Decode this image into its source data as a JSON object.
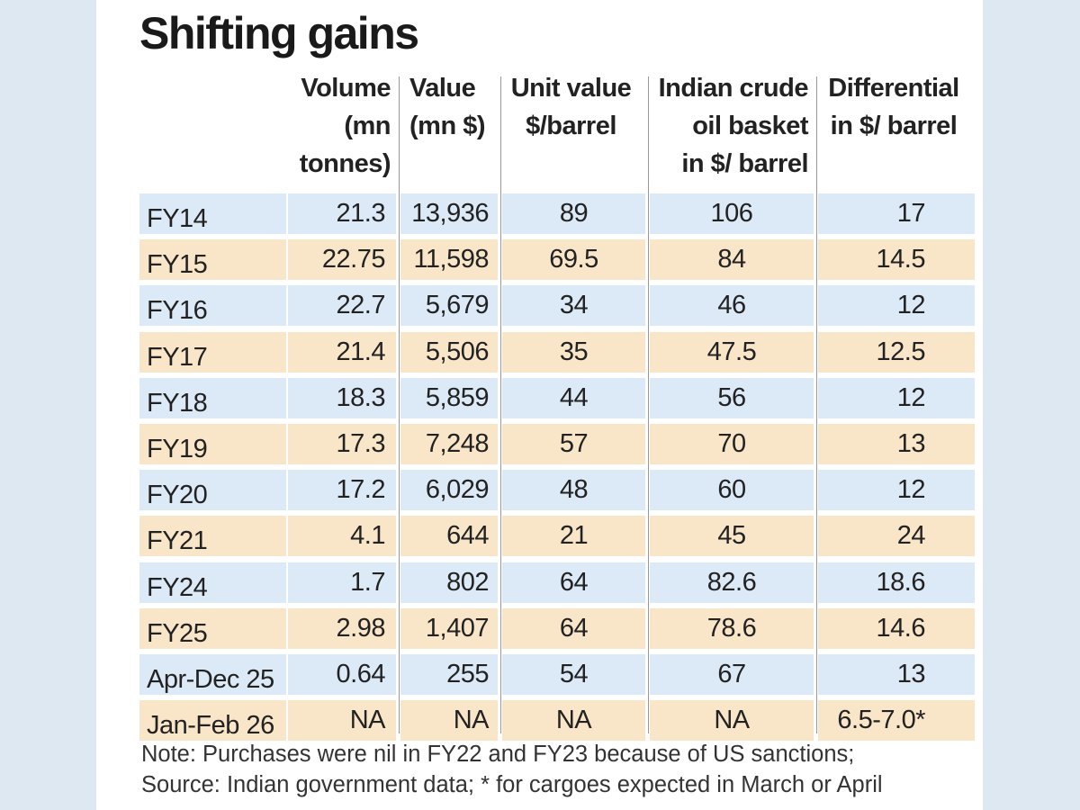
{
  "title": "Shifting gains",
  "table": {
    "headers": [
      {
        "lines": [
          ""
        ]
      },
      {
        "lines": [
          "Volume",
          "(mn",
          "tonnes)"
        ]
      },
      {
        "lines": [
          "Value",
          "(mn $)"
        ]
      },
      {
        "lines": [
          "Unit value",
          "$/barrel"
        ]
      },
      {
        "lines": [
          "Indian crude",
          "oil basket",
          "in $/ barrel"
        ]
      },
      {
        "lines": [
          "Differential",
          "in $/ barrel"
        ]
      }
    ],
    "rows": [
      [
        "FY14",
        "21.3",
        "13,936",
        "89",
        "106",
        "17"
      ],
      [
        "FY15",
        "22.75",
        "11,598",
        "69.5",
        "84",
        "14.5"
      ],
      [
        "FY16",
        "22.7",
        "5,679",
        "34",
        "46",
        "12"
      ],
      [
        "FY17",
        "21.4",
        "5,506",
        "35",
        "47.5",
        "12.5"
      ],
      [
        "FY18",
        "18.3",
        "5,859",
        "44",
        "56",
        "12"
      ],
      [
        "FY19",
        "17.3",
        "7,248",
        "57",
        "70",
        "13"
      ],
      [
        "FY20",
        "17.2",
        "6,029",
        "48",
        "60",
        "12"
      ],
      [
        "FY21",
        "4.1",
        "644",
        "21",
        "45",
        "24"
      ],
      [
        "FY24",
        "1.7",
        "802",
        "64",
        "82.6",
        "18.6"
      ],
      [
        "FY25",
        "2.98",
        "1,407",
        "64",
        "78.6",
        "14.6"
      ],
      [
        "Apr-Dec 25",
        "0.64",
        "255",
        "54",
        "67",
        "13"
      ],
      [
        "Jan-Feb 26",
        "NA",
        "NA",
        "NA",
        "NA",
        "6.5-7.0*"
      ]
    ]
  },
  "notes": [
    "Note: Purchases were nil in FY22 and FY23 because of US sanctions;",
    "Source: Indian government data; * for cargoes expected in March or April"
  ]
}
